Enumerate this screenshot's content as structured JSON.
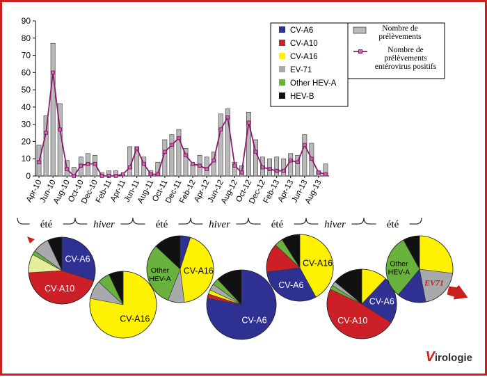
{
  "chart_data": {
    "type": "bar",
    "ylim": [
      0,
      90
    ],
    "yticks": [
      0,
      10,
      20,
      30,
      40,
      50,
      60,
      70,
      80,
      90
    ],
    "categories": [
      "Apr-10",
      "May-10",
      "Jun-10",
      "Jul-10",
      "Aug-10",
      "Sep-10",
      "Oct-10",
      "Nov-10",
      "Dec-10",
      "Jan-11",
      "Feb-11",
      "Mar-11",
      "Apr-11",
      "May-11",
      "Jun-11",
      "Jul-11",
      "Aug-11",
      "Sep-11",
      "Oct-11",
      "Nov-11",
      "Dec-11",
      "Jan-12",
      "Feb-12",
      "Mar-12",
      "Apr-12",
      "May-12",
      "Jun-12",
      "Jul-12",
      "Aug-12",
      "Sep-12",
      "Oct-12",
      "Nov-12",
      "Dec-12",
      "Jan-13",
      "Feb-13",
      "Mar-13",
      "Apr-13",
      "May-13",
      "Jun-13",
      "Jul-13",
      "Aug-13",
      "Sep-13"
    ],
    "tick_labels": [
      "Apr-10",
      "Jun-10",
      "Aug-10",
      "Oct-10",
      "Dec-10",
      "Feb-11",
      "Apr-11",
      "Jun-11",
      "Aug-11",
      "Oct-11",
      "Dec-11",
      "Feb-12",
      "Apr-12",
      "Jun-12",
      "Aug-12",
      "Oct-12",
      "Dec-12",
      "Feb-13",
      "Apr-13",
      "Jun-13",
      "Aug-13"
    ],
    "series": [
      {
        "name": "Nombre de prélèvements",
        "type": "bar",
        "color": "#b9b9b9",
        "values": [
          18,
          35,
          77,
          42,
          9,
          5,
          11,
          13,
          12,
          2,
          3,
          3,
          1,
          17,
          17,
          11,
          3,
          8,
          21,
          24,
          27,
          16,
          7,
          12,
          11,
          14,
          36,
          39,
          8,
          6,
          37,
          21,
          11,
          10,
          11,
          10,
          13,
          12,
          24,
          19,
          3,
          7
        ]
      },
      {
        "name": "Nombre de prélèvements entérovirus positifs",
        "type": "line",
        "color": "#8b1a6b",
        "values": [
          8,
          25,
          60,
          27,
          4,
          0,
          6,
          7,
          7,
          0,
          0,
          0,
          1,
          5,
          16,
          7,
          1,
          1,
          14,
          18,
          22,
          12,
          7,
          6,
          4,
          9,
          27,
          34,
          6,
          2,
          31,
          14,
          5,
          4,
          3,
          3,
          9,
          8,
          18,
          10,
          2,
          1
        ]
      }
    ],
    "legend_a": [
      {
        "label": "CV-A6",
        "color": "#2e3192"
      },
      {
        "label": "CV-A10",
        "color": "#cc1f26"
      },
      {
        "label": "CV-A16",
        "color": "#fff200"
      },
      {
        "label": "EV-71",
        "color": "#a7a9ac"
      },
      {
        "label": "Other HEV-A",
        "color": "#6ab23e"
      },
      {
        "label": "HEV-B",
        "color": "#111111"
      }
    ],
    "seasons": [
      {
        "label": "été",
        "italic": false
      },
      {
        "label": "hiver",
        "italic": true
      },
      {
        "label": "été",
        "italic": false
      },
      {
        "label": "hiver",
        "italic": true
      },
      {
        "label": "été",
        "italic": false
      },
      {
        "label": "hiver",
        "italic": true
      },
      {
        "label": "été",
        "italic": false
      }
    ],
    "pies": [
      {
        "slices": [
          {
            "type": "CV-A6",
            "value": 30,
            "color": "#2e3192",
            "label": "CV-A6"
          },
          {
            "type": "CV-A10",
            "value": 44,
            "color": "#cc1f26",
            "label": "CV-A10"
          },
          {
            "type": "CV-A16",
            "value": 9,
            "color": "#e6ee9c",
            "label": ""
          },
          {
            "type": "Other HEV-A",
            "value": 2,
            "color": "#6ab23e",
            "label": ""
          },
          {
            "type": "EV-71",
            "value": 8,
            "color": "#a7a9ac",
            "label": ""
          },
          {
            "type": "HEV-B",
            "value": 7,
            "color": "#111111",
            "label": ""
          }
        ]
      },
      {
        "slices": [
          {
            "type": "CV-A16",
            "value": 78,
            "color": "#fff200",
            "label": "CV-A16"
          },
          {
            "type": "EV-71",
            "value": 9,
            "color": "#a7a9ac",
            "label": ""
          },
          {
            "type": "Other HEV-A",
            "value": 6,
            "color": "#6ab23e",
            "label": ""
          },
          {
            "type": "HEV-B",
            "value": 7,
            "color": "#111111",
            "label": ""
          }
        ]
      },
      {
        "slices": [
          {
            "type": "CV-A6",
            "value": 5,
            "color": "#2e3192",
            "label": ""
          },
          {
            "type": "CV-A16",
            "value": 43,
            "color": "#fff200",
            "label": "CV-A16"
          },
          {
            "type": "EV-71",
            "value": 8,
            "color": "#a7a9ac",
            "label": ""
          },
          {
            "type": "Other HEV-A",
            "value": 31,
            "color": "#6ab23e",
            "label": "Other HEV-A"
          },
          {
            "type": "HEV-B",
            "value": 13,
            "color": "#111111",
            "label": ""
          }
        ]
      },
      {
        "slices": [
          {
            "type": "CV-A6",
            "value": 78,
            "color": "#2e3192",
            "label": "CV-A6"
          },
          {
            "type": "CV-A10",
            "value": 2,
            "color": "#cc1f26",
            "label": ""
          },
          {
            "type": "CV-A16",
            "value": 2,
            "color": "#fff200",
            "label": ""
          },
          {
            "type": "EV-71",
            "value": 3,
            "color": "#a7a9ac",
            "label": ""
          },
          {
            "type": "Other HEV-A",
            "value": 3,
            "color": "#6ab23e",
            "label": ""
          },
          {
            "type": "HEV-B",
            "value": 12,
            "color": "#111111",
            "label": ""
          }
        ]
      },
      {
        "slices": [
          {
            "type": "CV-A16",
            "value": 42,
            "color": "#fff200",
            "label": "CV-A16"
          },
          {
            "type": "CV-A6",
            "value": 31,
            "color": "#2e3192",
            "label": "CV-A6"
          },
          {
            "type": "CV-A10",
            "value": 14,
            "color": "#cc1f26",
            "label": ""
          },
          {
            "type": "Other HEV-A",
            "value": 4,
            "color": "#6ab23e",
            "label": ""
          },
          {
            "type": "HEV-B",
            "value": 9,
            "color": "#111111",
            "label": ""
          }
        ]
      },
      {
        "slices": [
          {
            "type": "CV-A16",
            "value": 12,
            "color": "#fff200",
            "label": ""
          },
          {
            "type": "CV-A6",
            "value": 22,
            "color": "#2e3192",
            "label": "CV-A6"
          },
          {
            "type": "CV-A10",
            "value": 48,
            "color": "#cc1f26",
            "label": "CV-A10"
          },
          {
            "type": "Other HEV-A",
            "value": 2,
            "color": "#6ab23e",
            "label": ""
          },
          {
            "type": "EV-71",
            "value": 2,
            "color": "#a7a9ac",
            "label": ""
          },
          {
            "type": "HEV-B",
            "value": 14,
            "color": "#111111",
            "label": ""
          }
        ]
      },
      {
        "slices": [
          {
            "type": "CV-A16",
            "value": 27,
            "color": "#fff200",
            "label": ""
          },
          {
            "type": "EV-71",
            "value": 20,
            "color": "#a7a9ac",
            "label": "EV71"
          },
          {
            "type": "CV-A6",
            "value": 14,
            "color": "#2e3192",
            "label": ""
          },
          {
            "type": "Other HEV-A",
            "value": 31,
            "color": "#6ab23e",
            "label": "Other HEV-A"
          },
          {
            "type": "HEV-B",
            "value": 8,
            "color": "#111111",
            "label": ""
          }
        ]
      }
    ]
  },
  "logo": {
    "initial": "V",
    "rest": "irologie"
  }
}
